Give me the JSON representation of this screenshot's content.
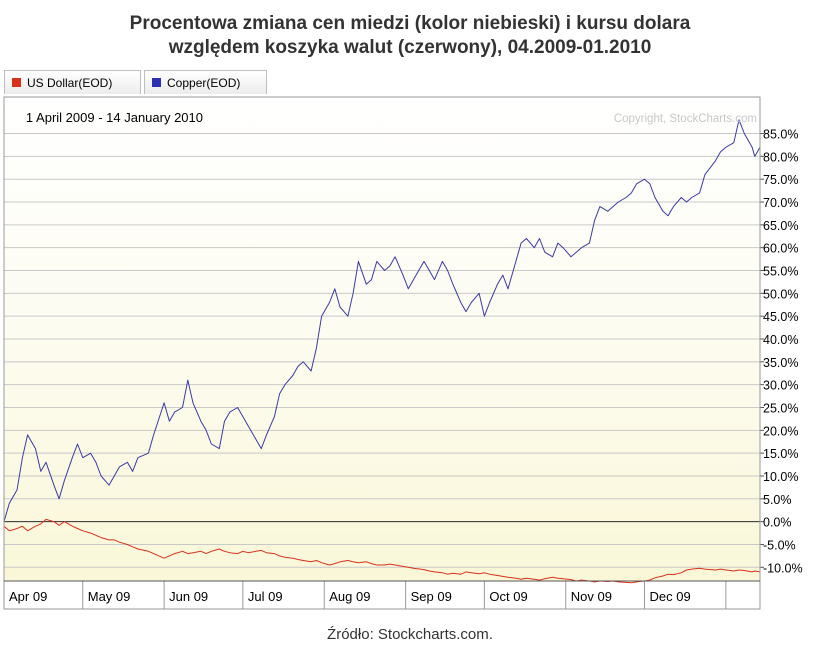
{
  "title_line1": "Procentowa zmiana cen miedzi (kolor niebieski) i kursu dolara",
  "title_line2": "względem koszyka walut (czerwony), 04.2009-01.2010",
  "source": "Źródło: Stockcharts.com.",
  "chart_data": {
    "type": "line",
    "date_range": "1 April 2009 - 14 January 2010",
    "copyright": "Copyright, StockCharts.com",
    "y_ticks": [
      "85.0%",
      "80.0%",
      "75.0%",
      "70.0%",
      "65.0%",
      "60.0%",
      "55.0%",
      "50.0%",
      "45.0%",
      "40.0%",
      "35.0%",
      "30.0%",
      "25.0%",
      "20.0%",
      "15.0%",
      "10.0%",
      "5.0%",
      "0.0%",
      "-5.0%",
      "-10.0%"
    ],
    "y_tick_values": [
      85,
      80,
      75,
      70,
      65,
      60,
      55,
      50,
      45,
      40,
      35,
      30,
      25,
      20,
      15,
      10,
      5,
      0,
      -5,
      -10
    ],
    "ylim": [
      -13,
      93
    ],
    "y_unit": "%",
    "x_tick_labels": [
      "Apr 09",
      "May 09",
      "Jun 09",
      "Jul 09",
      "Aug 09",
      "Sep 09",
      "Oct 09",
      "Nov 09",
      "Dec 09"
    ],
    "x_tick_dates": [
      "2009-04-01",
      "2009-05-01",
      "2009-06-01",
      "2009-07-01",
      "2009-08-01",
      "2009-09-01",
      "2009-10-01",
      "2009-11-01",
      "2009-12-01",
      "2010-01-01"
    ],
    "xlim": [
      "2009-04-01",
      "2010-01-14"
    ],
    "legend": [
      {
        "label": "US Dollar(EOD)",
        "color": "#d9301c"
      },
      {
        "label": "Copper(EOD)",
        "color": "#2f2fb4"
      }
    ],
    "series": [
      {
        "name": "Copper(EOD)",
        "color": "#3a3aa8",
        "points": [
          [
            "2009-04-01",
            0
          ],
          [
            "2009-04-03",
            4
          ],
          [
            "2009-04-06",
            7
          ],
          [
            "2009-04-08",
            14
          ],
          [
            "2009-04-10",
            19
          ],
          [
            "2009-04-13",
            16
          ],
          [
            "2009-04-15",
            11
          ],
          [
            "2009-04-17",
            13
          ],
          [
            "2009-04-20",
            8
          ],
          [
            "2009-04-22",
            5
          ],
          [
            "2009-04-24",
            9
          ],
          [
            "2009-04-27",
            14
          ],
          [
            "2009-04-29",
            17
          ],
          [
            "2009-05-01",
            14
          ],
          [
            "2009-05-04",
            15
          ],
          [
            "2009-05-06",
            13
          ],
          [
            "2009-05-08",
            10
          ],
          [
            "2009-05-11",
            8
          ],
          [
            "2009-05-13",
            10
          ],
          [
            "2009-05-15",
            12
          ],
          [
            "2009-05-18",
            13
          ],
          [
            "2009-05-20",
            11
          ],
          [
            "2009-05-22",
            14
          ],
          [
            "2009-05-26",
            15
          ],
          [
            "2009-05-28",
            19
          ],
          [
            "2009-06-01",
            26
          ],
          [
            "2009-06-03",
            22
          ],
          [
            "2009-06-05",
            24
          ],
          [
            "2009-06-08",
            25
          ],
          [
            "2009-06-10",
            31
          ],
          [
            "2009-06-12",
            26
          ],
          [
            "2009-06-15",
            22
          ],
          [
            "2009-06-17",
            20
          ],
          [
            "2009-06-19",
            17
          ],
          [
            "2009-06-22",
            16
          ],
          [
            "2009-06-24",
            22
          ],
          [
            "2009-06-26",
            24
          ],
          [
            "2009-06-29",
            25
          ],
          [
            "2009-07-01",
            23
          ],
          [
            "2009-07-03",
            21
          ],
          [
            "2009-07-06",
            18
          ],
          [
            "2009-07-08",
            16
          ],
          [
            "2009-07-10",
            19
          ],
          [
            "2009-07-13",
            23
          ],
          [
            "2009-07-15",
            28
          ],
          [
            "2009-07-17",
            30
          ],
          [
            "2009-07-20",
            32
          ],
          [
            "2009-07-22",
            34
          ],
          [
            "2009-07-24",
            35
          ],
          [
            "2009-07-27",
            33
          ],
          [
            "2009-07-29",
            38
          ],
          [
            "2009-07-31",
            45
          ],
          [
            "2009-08-03",
            48
          ],
          [
            "2009-08-05",
            51
          ],
          [
            "2009-08-07",
            47
          ],
          [
            "2009-08-10",
            45
          ],
          [
            "2009-08-12",
            50
          ],
          [
            "2009-08-14",
            57
          ],
          [
            "2009-08-17",
            52
          ],
          [
            "2009-08-19",
            53
          ],
          [
            "2009-08-21",
            57
          ],
          [
            "2009-08-24",
            55
          ],
          [
            "2009-08-26",
            56
          ],
          [
            "2009-08-28",
            58
          ],
          [
            "2009-08-31",
            54
          ],
          [
            "2009-09-02",
            51
          ],
          [
            "2009-09-04",
            53
          ],
          [
            "2009-09-08",
            57
          ],
          [
            "2009-09-10",
            55
          ],
          [
            "2009-09-12",
            53
          ],
          [
            "2009-09-15",
            57
          ],
          [
            "2009-09-17",
            55
          ],
          [
            "2009-09-19",
            52
          ],
          [
            "2009-09-22",
            48
          ],
          [
            "2009-09-24",
            46
          ],
          [
            "2009-09-26",
            48
          ],
          [
            "2009-09-29",
            50
          ],
          [
            "2009-10-01",
            45
          ],
          [
            "2009-10-03",
            48
          ],
          [
            "2009-10-06",
            52
          ],
          [
            "2009-10-08",
            54
          ],
          [
            "2009-10-10",
            51
          ],
          [
            "2009-10-13",
            57
          ],
          [
            "2009-10-15",
            61
          ],
          [
            "2009-10-17",
            62
          ],
          [
            "2009-10-20",
            60
          ],
          [
            "2009-10-22",
            62
          ],
          [
            "2009-10-24",
            59
          ],
          [
            "2009-10-27",
            58
          ],
          [
            "2009-10-29",
            61
          ],
          [
            "2009-10-31",
            60
          ],
          [
            "2009-11-03",
            58
          ],
          [
            "2009-11-05",
            59
          ],
          [
            "2009-11-07",
            60
          ],
          [
            "2009-11-10",
            61
          ],
          [
            "2009-11-12",
            66
          ],
          [
            "2009-11-14",
            69
          ],
          [
            "2009-11-17",
            68
          ],
          [
            "2009-11-19",
            69
          ],
          [
            "2009-11-21",
            70
          ],
          [
            "2009-11-24",
            71
          ],
          [
            "2009-11-26",
            72
          ],
          [
            "2009-11-28",
            74
          ],
          [
            "2009-12-01",
            75
          ],
          [
            "2009-12-03",
            74
          ],
          [
            "2009-12-05",
            71
          ],
          [
            "2009-12-08",
            68
          ],
          [
            "2009-12-10",
            67
          ],
          [
            "2009-12-12",
            69
          ],
          [
            "2009-12-15",
            71
          ],
          [
            "2009-12-17",
            70
          ],
          [
            "2009-12-19",
            71
          ],
          [
            "2009-12-22",
            72
          ],
          [
            "2009-12-24",
            76
          ],
          [
            "2009-12-28",
            79
          ],
          [
            "2009-12-30",
            81
          ],
          [
            "2010-01-01",
            82
          ],
          [
            "2010-01-04",
            83
          ],
          [
            "2010-01-06",
            88
          ],
          [
            "2010-01-08",
            85
          ],
          [
            "2010-01-11",
            82
          ],
          [
            "2010-01-12",
            80
          ],
          [
            "2010-01-14",
            82
          ]
        ]
      },
      {
        "name": "US Dollar(EOD)",
        "color": "#d9301c",
        "points": [
          [
            "2009-04-01",
            -1
          ],
          [
            "2009-04-03",
            -2
          ],
          [
            "2009-04-06",
            -1.5
          ],
          [
            "2009-04-08",
            -1
          ],
          [
            "2009-04-10",
            -2
          ],
          [
            "2009-04-13",
            -1
          ],
          [
            "2009-04-15",
            -0.5
          ],
          [
            "2009-04-17",
            0.5
          ],
          [
            "2009-04-20",
            0
          ],
          [
            "2009-04-22",
            -0.8
          ],
          [
            "2009-04-24",
            0
          ],
          [
            "2009-04-27",
            -1
          ],
          [
            "2009-04-29",
            -1.5
          ],
          [
            "2009-05-01",
            -2
          ],
          [
            "2009-05-04",
            -2.5
          ],
          [
            "2009-05-06",
            -3
          ],
          [
            "2009-05-08",
            -3.5
          ],
          [
            "2009-05-11",
            -4
          ],
          [
            "2009-05-13",
            -4
          ],
          [
            "2009-05-15",
            -4.5
          ],
          [
            "2009-05-18",
            -5
          ],
          [
            "2009-05-20",
            -5.5
          ],
          [
            "2009-05-22",
            -6
          ],
          [
            "2009-05-26",
            -6.5
          ],
          [
            "2009-05-28",
            -7
          ],
          [
            "2009-06-01",
            -8
          ],
          [
            "2009-06-03",
            -7.5
          ],
          [
            "2009-06-05",
            -7
          ],
          [
            "2009-06-08",
            -6.5
          ],
          [
            "2009-06-10",
            -7
          ],
          [
            "2009-06-12",
            -6.8
          ],
          [
            "2009-06-15",
            -6.5
          ],
          [
            "2009-06-17",
            -7
          ],
          [
            "2009-06-19",
            -6.5
          ],
          [
            "2009-06-22",
            -6
          ],
          [
            "2009-06-24",
            -6.5
          ],
          [
            "2009-06-26",
            -6.8
          ],
          [
            "2009-06-29",
            -7
          ],
          [
            "2009-07-01",
            -6.5
          ],
          [
            "2009-07-03",
            -6.8
          ],
          [
            "2009-07-06",
            -6.5
          ],
          [
            "2009-07-08",
            -6.3
          ],
          [
            "2009-07-10",
            -6.8
          ],
          [
            "2009-07-13",
            -7
          ],
          [
            "2009-07-15",
            -7.5
          ],
          [
            "2009-07-17",
            -7.8
          ],
          [
            "2009-07-20",
            -8
          ],
          [
            "2009-07-22",
            -8.3
          ],
          [
            "2009-07-24",
            -8.5
          ],
          [
            "2009-07-27",
            -8.8
          ],
          [
            "2009-07-29",
            -8.5
          ],
          [
            "2009-07-31",
            -9
          ],
          [
            "2009-08-03",
            -9.5
          ],
          [
            "2009-08-05",
            -9.2
          ],
          [
            "2009-08-07",
            -8.8
          ],
          [
            "2009-08-10",
            -8.5
          ],
          [
            "2009-08-12",
            -8.8
          ],
          [
            "2009-08-14",
            -9
          ],
          [
            "2009-08-17",
            -8.8
          ],
          [
            "2009-08-19",
            -9.2
          ],
          [
            "2009-08-21",
            -9.5
          ],
          [
            "2009-08-24",
            -9.5
          ],
          [
            "2009-08-26",
            -9.3
          ],
          [
            "2009-08-28",
            -9.5
          ],
          [
            "2009-08-31",
            -9.8
          ],
          [
            "2009-09-02",
            -10
          ],
          [
            "2009-09-04",
            -10.2
          ],
          [
            "2009-09-08",
            -10.5
          ],
          [
            "2009-09-10",
            -10.8
          ],
          [
            "2009-09-12",
            -11
          ],
          [
            "2009-09-15",
            -11.2
          ],
          [
            "2009-09-17",
            -11.5
          ],
          [
            "2009-09-19",
            -11.3
          ],
          [
            "2009-09-22",
            -11.5
          ],
          [
            "2009-09-24",
            -11
          ],
          [
            "2009-09-26",
            -11.2
          ],
          [
            "2009-09-29",
            -11.4
          ],
          [
            "2009-10-01",
            -11.2
          ],
          [
            "2009-10-03",
            -11.5
          ],
          [
            "2009-10-06",
            -11.8
          ],
          [
            "2009-10-08",
            -12
          ],
          [
            "2009-10-10",
            -12.2
          ],
          [
            "2009-10-13",
            -12.4
          ],
          [
            "2009-10-15",
            -12.6
          ],
          [
            "2009-10-17",
            -12.4
          ],
          [
            "2009-10-20",
            -12.6
          ],
          [
            "2009-10-22",
            -12.8
          ],
          [
            "2009-10-24",
            -12.5
          ],
          [
            "2009-10-27",
            -12.2
          ],
          [
            "2009-10-29",
            -12.4
          ],
          [
            "2009-10-31",
            -12.5
          ],
          [
            "2009-11-03",
            -12.7
          ],
          [
            "2009-11-05",
            -13
          ],
          [
            "2009-11-07",
            -12.8
          ],
          [
            "2009-11-10",
            -13
          ],
          [
            "2009-11-12",
            -13.2
          ],
          [
            "2009-11-14",
            -13
          ],
          [
            "2009-11-17",
            -13.1
          ],
          [
            "2009-11-19",
            -13
          ],
          [
            "2009-11-21",
            -13.2
          ],
          [
            "2009-11-24",
            -13.3
          ],
          [
            "2009-11-26",
            -13.4
          ],
          [
            "2009-11-28",
            -13.2
          ],
          [
            "2009-12-01",
            -13
          ],
          [
            "2009-12-03",
            -12.8
          ],
          [
            "2009-12-05",
            -12.3
          ],
          [
            "2009-12-08",
            -11.9
          ],
          [
            "2009-12-10",
            -11.5
          ],
          [
            "2009-12-12",
            -11.6
          ],
          [
            "2009-12-15",
            -11.2
          ],
          [
            "2009-12-17",
            -10.6
          ],
          [
            "2009-12-19",
            -10.4
          ],
          [
            "2009-12-22",
            -10.2
          ],
          [
            "2009-12-24",
            -10.4
          ],
          [
            "2009-12-28",
            -10.6
          ],
          [
            "2009-12-30",
            -10.4
          ],
          [
            "2010-01-01",
            -10.6
          ],
          [
            "2010-01-04",
            -10.8
          ],
          [
            "2010-01-06",
            -10.6
          ],
          [
            "2010-01-08",
            -10.7
          ],
          [
            "2010-01-11",
            -11
          ],
          [
            "2010-01-12",
            -10.8
          ],
          [
            "2010-01-14",
            -11
          ]
        ]
      }
    ]
  }
}
